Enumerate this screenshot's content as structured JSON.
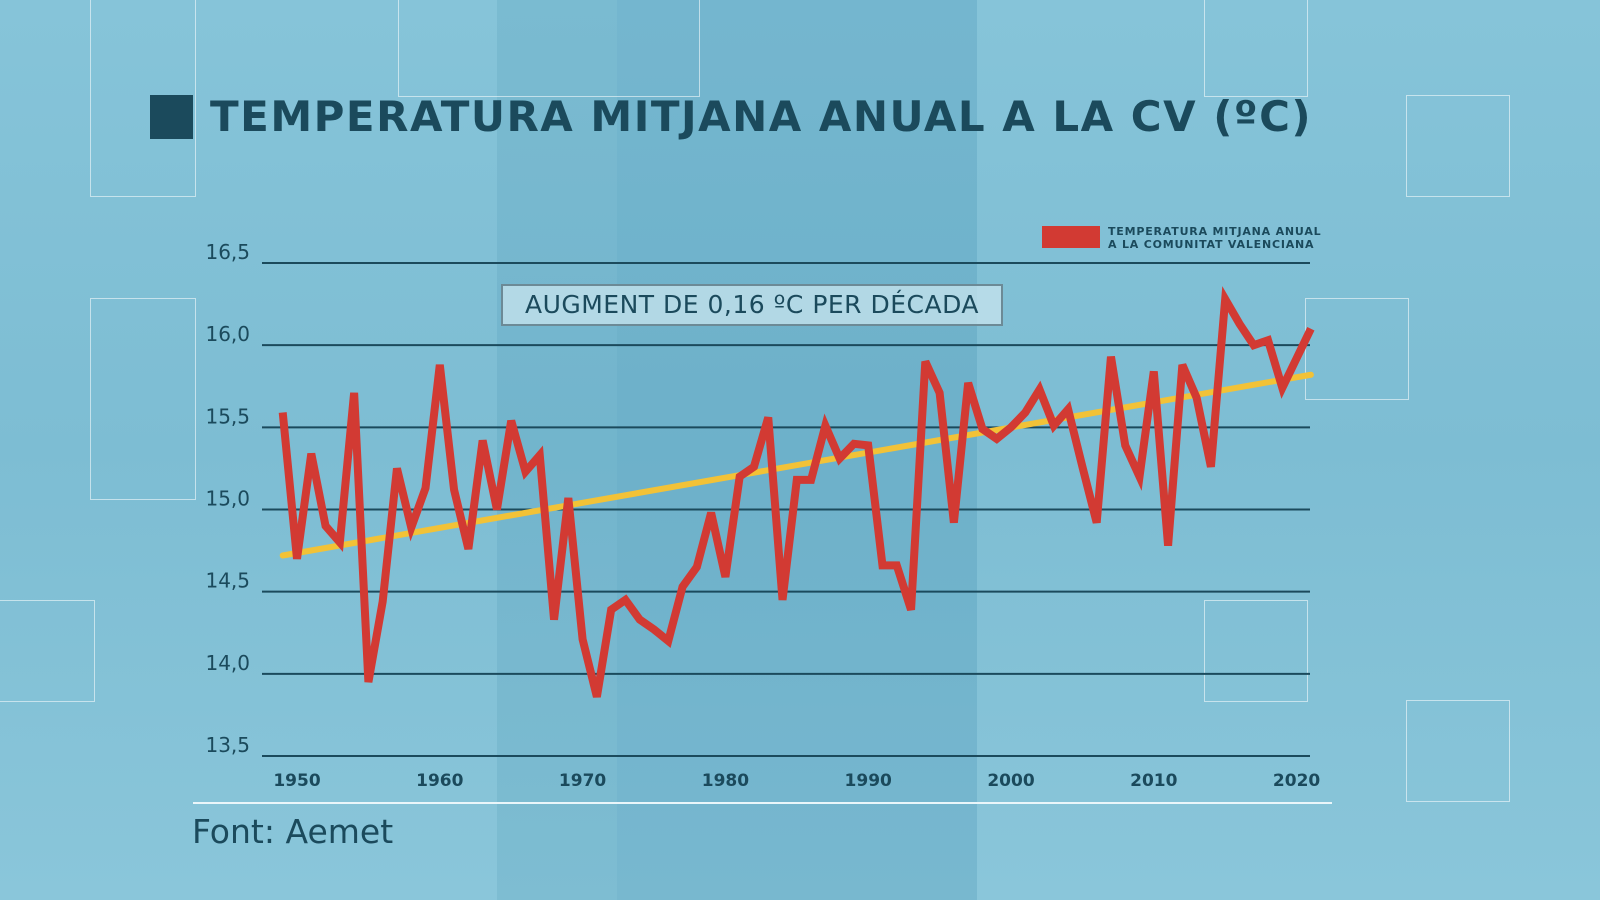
{
  "title": "TEMPERATURA MITJANA ANUAL A LA CV (ºC)",
  "source": "Font: Aemet",
  "annotation": "AUGMENT DE 0,16 ºC PER DÉCADA",
  "colors": {
    "series": "#d23a33",
    "trend": "#f2c237",
    "text": "#1b4a5c",
    "background": "#7dbdd3"
  },
  "chart_data": {
    "type": "line",
    "title": "TEMPERATURA MITJANA ANUAL A LA CV (ºC)",
    "ylim": [
      13.5,
      16.5
    ],
    "yticks": [
      13.5,
      14.0,
      14.5,
      15.0,
      15.5,
      16.0,
      16.5
    ],
    "ytick_labels": [
      "13,5",
      "14,0",
      "14,5",
      "15,0",
      "15,5",
      "16,0",
      "16,5"
    ],
    "xticks": [
      1950,
      1960,
      1970,
      1980,
      1990,
      2000,
      2010,
      2020
    ],
    "xtick_labels": [
      "1950",
      "1960",
      "1970",
      "1980",
      "1990",
      "2000",
      "2010",
      "2020"
    ],
    "grid": "horizontal",
    "legend_position": "top-right",
    "x_start": 1949,
    "series": [
      {
        "name": "TEMPERATURA MITJANA ANUAL A LA COMUNITAT VALENCIANA",
        "legend_lines": [
          "TEMPERATURA MITJANA ANUAL",
          "A LA COMUNITAT VALENCIANA"
        ],
        "values": [
          15.59,
          14.7,
          15.34,
          14.9,
          14.8,
          15.71,
          13.95,
          14.44,
          15.25,
          14.89,
          15.13,
          15.88,
          15.12,
          14.76,
          15.42,
          15.0,
          15.54,
          15.23,
          15.33,
          14.33,
          15.07,
          14.21,
          13.86,
          14.39,
          14.45,
          14.33,
          14.27,
          14.2,
          14.53,
          14.65,
          14.98,
          14.59,
          15.2,
          15.26,
          15.56,
          14.45,
          15.18,
          15.18,
          15.51,
          15.31,
          15.4,
          15.39,
          14.66,
          14.66,
          14.39,
          15.9,
          15.71,
          14.92,
          15.77,
          15.49,
          15.43,
          15.5,
          15.59,
          15.73,
          15.51,
          15.61,
          15.26,
          14.92,
          15.93,
          15.39,
          15.2,
          15.84,
          14.78,
          15.88,
          15.68,
          15.26,
          16.28,
          16.13,
          16.0,
          16.03,
          15.74,
          15.92,
          16.1
        ]
      }
    ],
    "trend": {
      "x": [
        1949,
        2021
      ],
      "y": [
        14.72,
        15.82
      ]
    }
  }
}
